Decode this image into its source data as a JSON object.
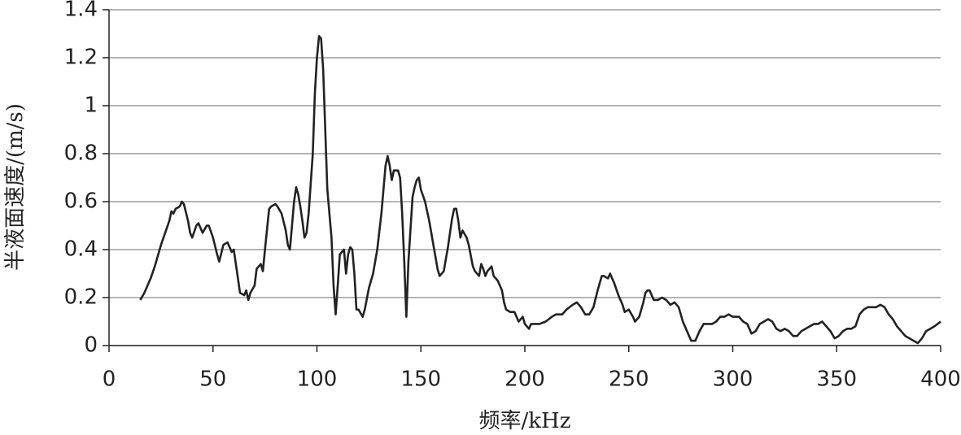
{
  "chart_data": {
    "type": "line",
    "ylabel": "半液面速度/(m/s)",
    "xlabel": "频率/kHz",
    "xlim": [
      0,
      400
    ],
    "xticks": [
      0,
      50,
      100,
      150,
      200,
      250,
      300,
      350,
      400
    ],
    "ylim": [
      0,
      1.4
    ],
    "yticks": [
      0,
      0.2,
      0.4,
      0.6,
      0.8,
      1,
      1.2,
      1.4
    ],
    "grid": true,
    "color": "#222222",
    "x": [
      15,
      17,
      20,
      22,
      25,
      27,
      29,
      30,
      31,
      32,
      34,
      35,
      36,
      38,
      39,
      40,
      42,
      43,
      45,
      47,
      48,
      50,
      52,
      53,
      55,
      57,
      59,
      60,
      62,
      63,
      65,
      66,
      67,
      68,
      70,
      71,
      73,
      74,
      75,
      77,
      78,
      80,
      81,
      83,
      85,
      86,
      87,
      88,
      89,
      90,
      91,
      92,
      93,
      94,
      95,
      96,
      98,
      99,
      100,
      101,
      102,
      103,
      104,
      105,
      107,
      108,
      109,
      110,
      111,
      113,
      114,
      115,
      116,
      117,
      118,
      119,
      120,
      122,
      123,
      125,
      127,
      129,
      131,
      133,
      134,
      135,
      136,
      137,
      139,
      140,
      141,
      142,
      143,
      144,
      146,
      147,
      148,
      149,
      150,
      152,
      154,
      156,
      158,
      159,
      161,
      163,
      165,
      166,
      167,
      168,
      169,
      170,
      172,
      173,
      175,
      176,
      178,
      179,
      180,
      181,
      182,
      184,
      185,
      187,
      189,
      190,
      191,
      193,
      195,
      197,
      199,
      200,
      202,
      203,
      205,
      207,
      210,
      213,
      215,
      218,
      220,
      223,
      225,
      227,
      229,
      231,
      233,
      235,
      237,
      238,
      240,
      241,
      243,
      245,
      247,
      248,
      250,
      252,
      253,
      255,
      257,
      258,
      259,
      260,
      262,
      264,
      266,
      268,
      270,
      272,
      274,
      276,
      278,
      280,
      282,
      284,
      286,
      288,
      290,
      292,
      294,
      296,
      298,
      300,
      303,
      305,
      307,
      309,
      311,
      313,
      315,
      317,
      319,
      321,
      323,
      325,
      327,
      329,
      331,
      333,
      335,
      337,
      339,
      341,
      343,
      345,
      347,
      349,
      351,
      353,
      355,
      357,
      359,
      361,
      363,
      365,
      367,
      369,
      371,
      373,
      375,
      377,
      379,
      381,
      383,
      385,
      387,
      389,
      391,
      393,
      395,
      397,
      400
    ],
    "values": [
      0.19,
      0.22,
      0.28,
      0.33,
      0.42,
      0.47,
      0.52,
      0.56,
      0.55,
      0.57,
      0.58,
      0.6,
      0.59,
      0.52,
      0.47,
      0.45,
      0.5,
      0.51,
      0.47,
      0.5,
      0.5,
      0.45,
      0.38,
      0.35,
      0.42,
      0.43,
      0.39,
      0.4,
      0.28,
      0.22,
      0.21,
      0.23,
      0.19,
      0.22,
      0.25,
      0.32,
      0.34,
      0.31,
      0.4,
      0.57,
      0.58,
      0.59,
      0.58,
      0.55,
      0.48,
      0.42,
      0.4,
      0.5,
      0.6,
      0.66,
      0.63,
      0.58,
      0.52,
      0.45,
      0.47,
      0.55,
      0.8,
      1.05,
      1.2,
      1.29,
      1.28,
      1.15,
      0.9,
      0.65,
      0.45,
      0.25,
      0.13,
      0.25,
      0.38,
      0.4,
      0.3,
      0.38,
      0.41,
      0.4,
      0.3,
      0.15,
      0.15,
      0.12,
      0.15,
      0.24,
      0.3,
      0.4,
      0.55,
      0.75,
      0.79,
      0.75,
      0.69,
      0.73,
      0.73,
      0.7,
      0.55,
      0.35,
      0.12,
      0.35,
      0.62,
      0.66,
      0.69,
      0.7,
      0.65,
      0.6,
      0.52,
      0.42,
      0.32,
      0.29,
      0.31,
      0.41,
      0.53,
      0.57,
      0.57,
      0.52,
      0.45,
      0.48,
      0.45,
      0.42,
      0.33,
      0.31,
      0.29,
      0.34,
      0.32,
      0.29,
      0.31,
      0.33,
      0.29,
      0.27,
      0.23,
      0.18,
      0.15,
      0.14,
      0.14,
      0.1,
      0.12,
      0.09,
      0.07,
      0.09,
      0.09,
      0.09,
      0.1,
      0.12,
      0.13,
      0.13,
      0.15,
      0.17,
      0.18,
      0.16,
      0.13,
      0.13,
      0.16,
      0.23,
      0.29,
      0.29,
      0.28,
      0.3,
      0.26,
      0.21,
      0.17,
      0.14,
      0.15,
      0.12,
      0.1,
      0.12,
      0.18,
      0.22,
      0.23,
      0.23,
      0.19,
      0.19,
      0.2,
      0.19,
      0.17,
      0.18,
      0.16,
      0.1,
      0.06,
      0.02,
      0.02,
      0.06,
      0.09,
      0.09,
      0.09,
      0.1,
      0.12,
      0.12,
      0.13,
      0.12,
      0.12,
      0.1,
      0.09,
      0.05,
      0.06,
      0.09,
      0.1,
      0.11,
      0.1,
      0.07,
      0.06,
      0.07,
      0.06,
      0.04,
      0.04,
      0.06,
      0.07,
      0.08,
      0.09,
      0.09,
      0.1,
      0.08,
      0.06,
      0.03,
      0.04,
      0.06,
      0.07,
      0.07,
      0.08,
      0.13,
      0.15,
      0.16,
      0.16,
      0.16,
      0.17,
      0.16,
      0.13,
      0.11,
      0.08,
      0.06,
      0.04,
      0.03,
      0.02,
      0.01,
      0.03,
      0.06,
      0.07,
      0.08,
      0.1
    ]
  }
}
